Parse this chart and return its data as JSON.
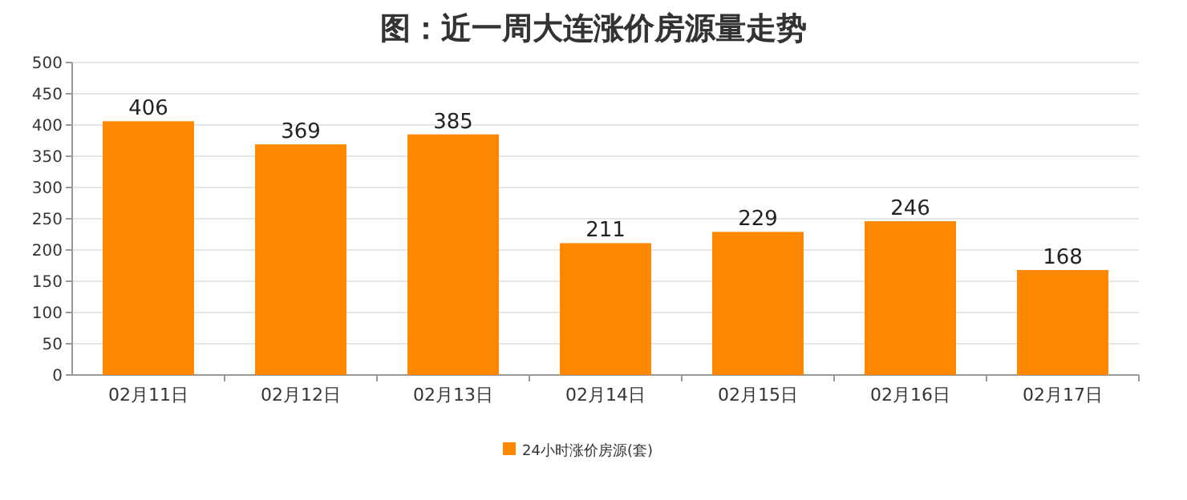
{
  "chart_data": {
    "type": "bar",
    "title": "图：近一周大连涨价房源量走势",
    "categories": [
      "02月11日",
      "02月12日",
      "02月13日",
      "02月14日",
      "02月15日",
      "02月16日",
      "02月17日"
    ],
    "series": [
      {
        "name": "24小时涨价房源(套)",
        "color": "#ff8800",
        "values": [
          406,
          369,
          385,
          211,
          229,
          246,
          168
        ]
      }
    ],
    "ylim": [
      0,
      500
    ],
    "yticks": [
      0,
      50,
      100,
      150,
      200,
      250,
      300,
      350,
      400,
      450,
      500
    ],
    "grid": "y",
    "legend": "bottom",
    "data_labels": true
  }
}
